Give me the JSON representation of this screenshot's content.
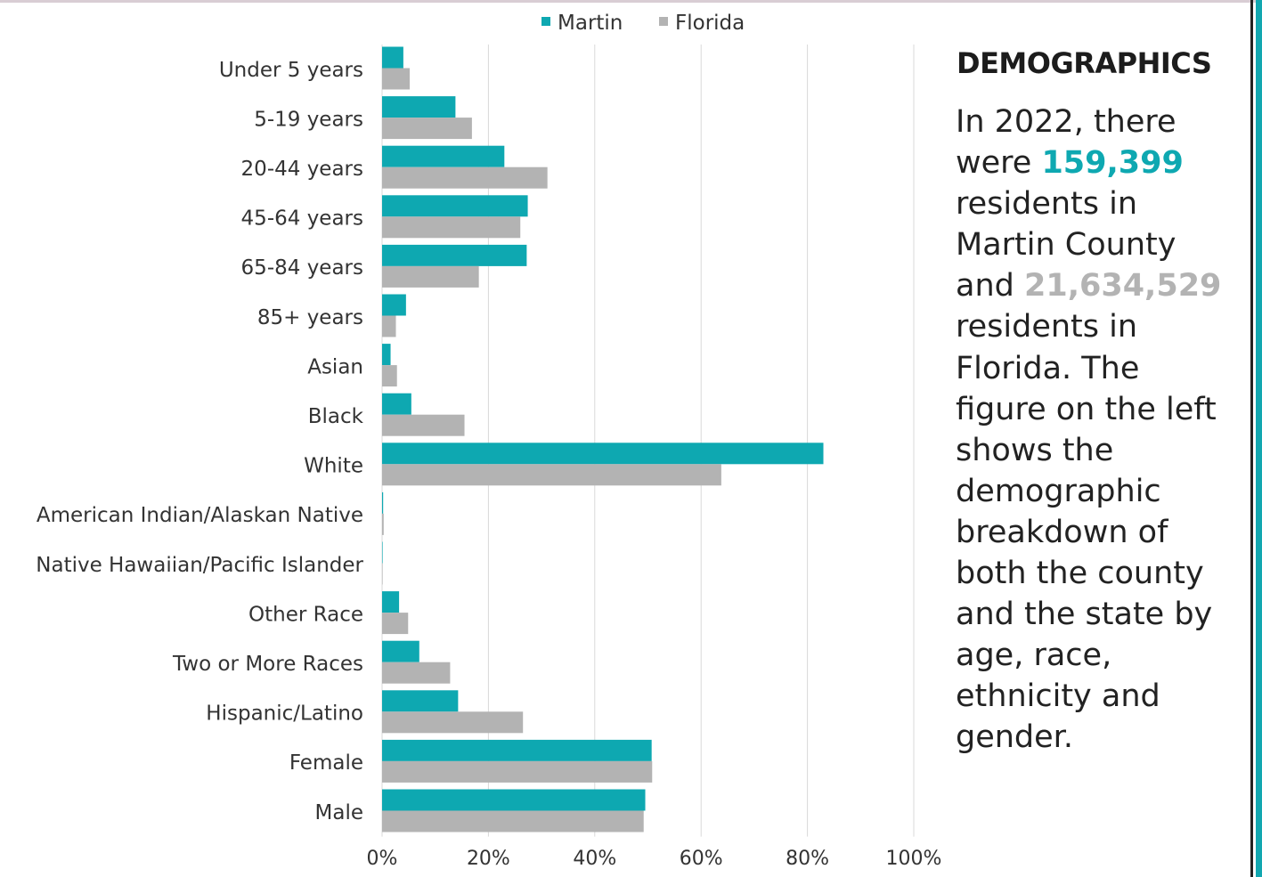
{
  "colors": {
    "martin": "#0ea8b1",
    "florida": "#b3b3b3",
    "grid": "#d9d9d9",
    "text": "#333333"
  },
  "chart_data": {
    "type": "bar",
    "orientation": "horizontal",
    "categories": [
      "Under 5 years",
      "5-19 years",
      "20-44 years",
      "45-64 years",
      "65-84 years",
      "85+ years",
      "Asian",
      "Black",
      "White",
      "American Indian/Alaskan Native",
      "Native Hawaiian/Pacific Islander",
      "Other Race",
      "Two or More Races",
      "Hispanic/Latino",
      "Female",
      "Male"
    ],
    "series": [
      {
        "name": "Martin",
        "color": "#0ea8b1",
        "values": [
          0.04,
          0.138,
          0.23,
          0.274,
          0.272,
          0.045,
          0.016,
          0.055,
          0.83,
          0.002,
          0.001,
          0.032,
          0.07,
          0.143,
          0.507,
          0.495
        ]
      },
      {
        "name": "Florida",
        "color": "#b3b3b3",
        "values": [
          0.052,
          0.169,
          0.311,
          0.26,
          0.182,
          0.026,
          0.028,
          0.155,
          0.638,
          0.003,
          0.001,
          0.049,
          0.128,
          0.265,
          0.508,
          0.492
        ]
      }
    ],
    "xlim": [
      0,
      1
    ],
    "xticks": [
      "0%",
      "20%",
      "40%",
      "60%",
      "80%",
      "100%"
    ],
    "grid": true,
    "legend": "top-center"
  },
  "panel": {
    "title": "DEMOGRAPHICS",
    "text_1": "In 2022, there were ",
    "martin_population": "159,399",
    "text_2": " residents in Martin County and ",
    "florida_population": "21,634,529",
    "text_3": " residents in Florida. The figure on the left shows the demographic breakdown of both the county and the state by age, race, ethnicity and gender."
  }
}
